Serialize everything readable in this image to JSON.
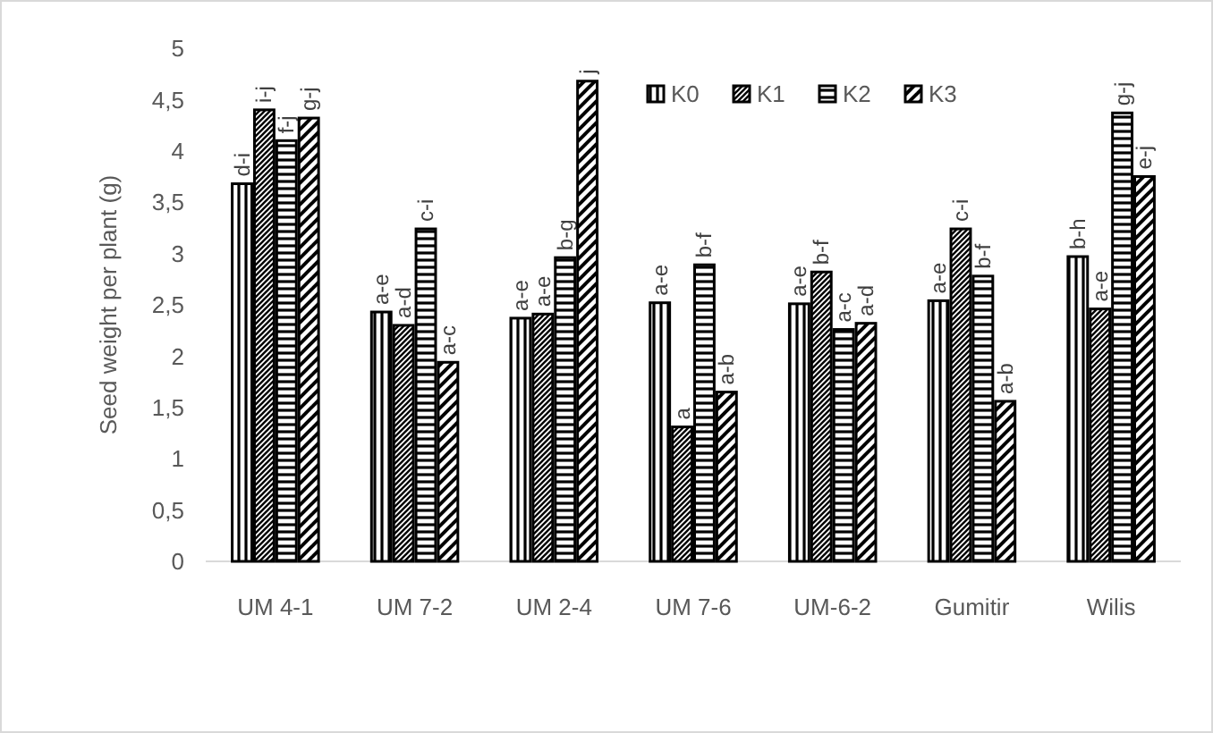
{
  "chart_data": {
    "type": "bar",
    "ylabel": "Seed weight per plant (g)",
    "categories": [
      "UM 4-1",
      "UM 7-2",
      "UM 2-4",
      "UM 7-6",
      "UM-6-2",
      "Gumitir",
      "Wilis"
    ],
    "series": [
      {
        "name": "K0",
        "color": "#000000",
        "values": [
          3.68,
          2.43,
          2.37,
          2.52,
          2.51,
          2.54,
          2.97
        ],
        "value_labels": [
          "d-i",
          "a-e",
          "a-e",
          "a-e",
          "a-e",
          "a-e",
          "b-h"
        ]
      },
      {
        "name": "K1",
        "color": "#000000",
        "values": [
          4.4,
          2.3,
          2.41,
          1.31,
          2.82,
          3.24,
          2.46
        ],
        "value_labels": [
          "i-j",
          "a-d",
          "a-e",
          "a",
          "b-f",
          "c-i",
          "a-e"
        ]
      },
      {
        "name": "K2",
        "color": "#000000",
        "values": [
          4.1,
          3.24,
          2.96,
          2.89,
          2.26,
          2.78,
          4.37
        ],
        "value_labels": [
          "f-j",
          "c-i",
          "b-g",
          "b-f",
          "a-c",
          "b-f",
          "g-j"
        ]
      },
      {
        "name": "K3",
        "color": "#000000",
        "values": [
          4.32,
          1.94,
          4.68,
          1.65,
          2.32,
          1.56,
          3.75
        ],
        "value_labels": [
          "g-j",
          "a-c",
          "j",
          "a-b",
          "a-d",
          "a-b",
          "e-j"
        ]
      }
    ],
    "ylim": [
      0,
      5
    ],
    "yticks": [
      0,
      {
        "value": 0.5,
        "label": "0,5"
      },
      1,
      {
        "value": 1.5,
        "label": "1,5"
      },
      2,
      {
        "value": 2.5,
        "label": "2,5"
      },
      3,
      {
        "value": 3.5,
        "label": "3,5"
      },
      4,
      {
        "value": 4.5,
        "label": "4,5"
      },
      5
    ],
    "grid": false,
    "legend": "top"
  }
}
